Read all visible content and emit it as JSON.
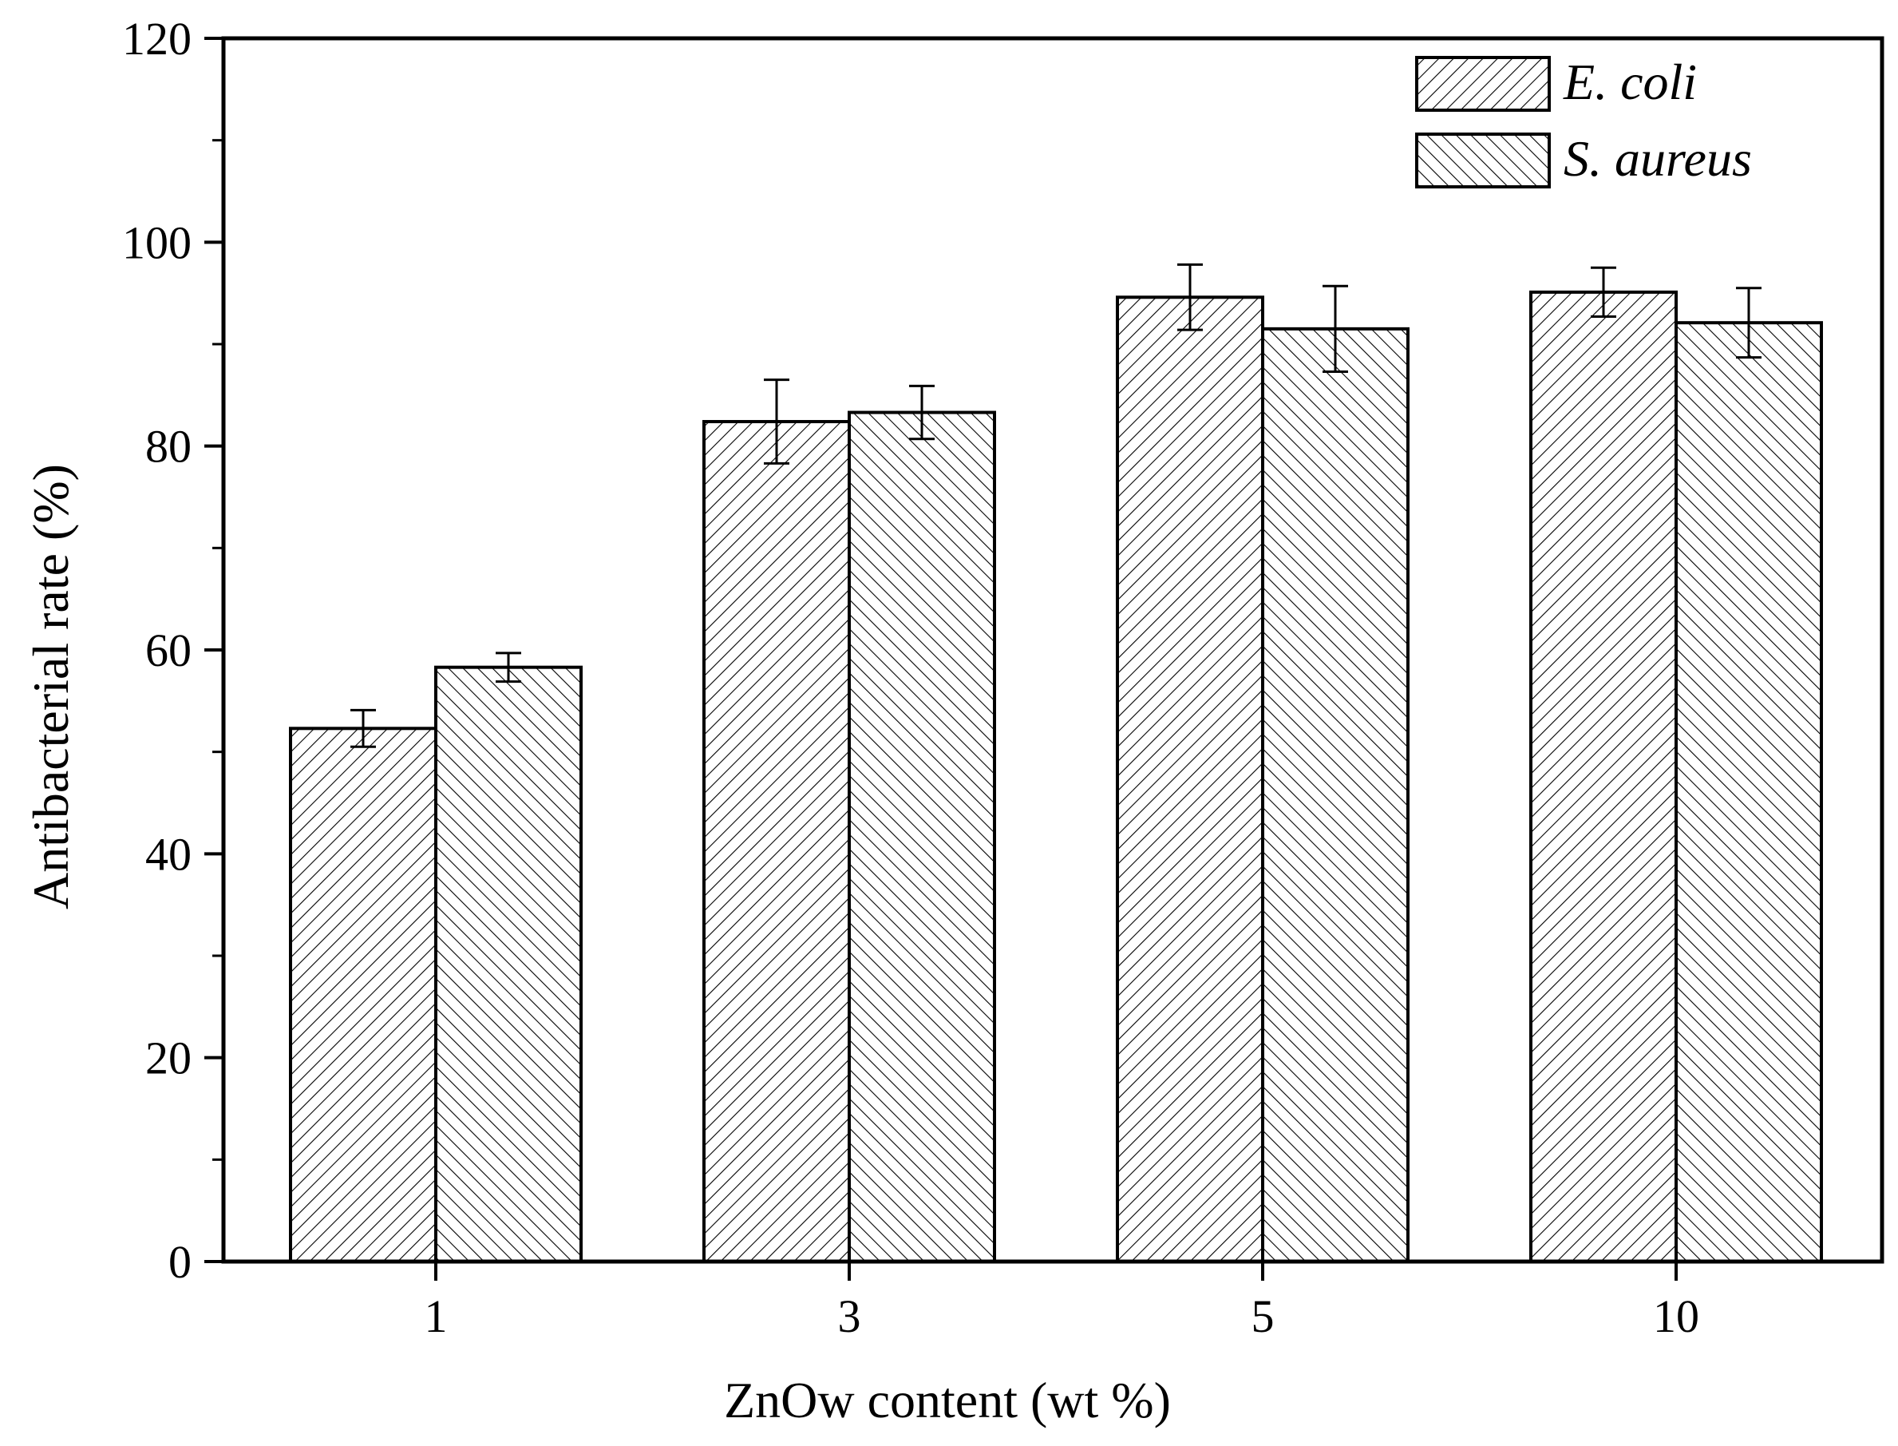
{
  "chart_data": {
    "type": "bar",
    "xlabel": "ZnOw content (wt %)",
    "ylabel": "Antibacterial rate (%)",
    "categories": [
      "1",
      "3",
      "5",
      "10"
    ],
    "ylim": [
      0,
      120
    ],
    "yticks": [
      0,
      20,
      40,
      60,
      80,
      100,
      120
    ],
    "grid": false,
    "legend_position": "top-right",
    "series": [
      {
        "name": "E. coli",
        "hatch": "forward-diagonal",
        "values": [
          52.3,
          82.4,
          94.6,
          95.1
        ],
        "errors": [
          1.8,
          4.1,
          3.2,
          2.4
        ]
      },
      {
        "name": "S. aureus",
        "hatch": "backward-diagonal",
        "values": [
          58.3,
          83.3,
          91.5,
          92.1
        ],
        "errors": [
          1.4,
          2.6,
          4.2,
          3.4
        ]
      }
    ],
    "colors": {
      "axis": "#000000",
      "bar_fill": "#ffffff",
      "hatch": "#000000"
    }
  }
}
